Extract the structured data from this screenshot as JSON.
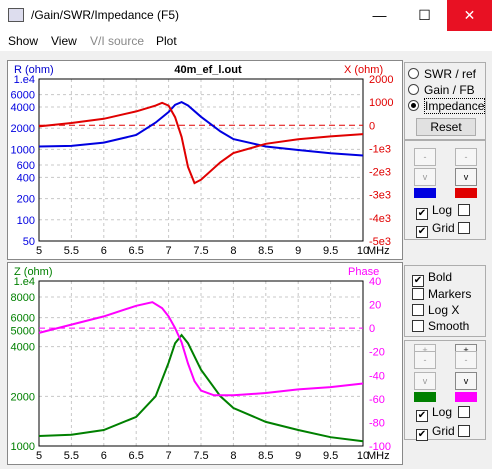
{
  "window": {
    "title": "/Gain/SWR/Impedance (F5)",
    "minimize": "—",
    "maximize": "☐",
    "close": "✕"
  },
  "menu": {
    "show": "Show",
    "view": "View",
    "vi_source": "V/I source",
    "plot": "Plot"
  },
  "top_chart": {
    "title": "40m_ef_l.out",
    "left_label": "R (ohm)",
    "right_label": "X (ohm)",
    "left_ticks": [
      "1.e4",
      "6000",
      "4000",
      "2000",
      "1000",
      "600",
      "400",
      "200",
      "100",
      "50"
    ],
    "right_ticks": [
      "2000",
      "1000",
      "0",
      "-1e3",
      "-2e3",
      "-3e3",
      "-4e3",
      "-5e3"
    ]
  },
  "bottom_chart": {
    "left_label": "Z (ohm)",
    "right_label": "Phase",
    "left_ticks": [
      "1.e4",
      "8000",
      "6000",
      "5000",
      "4000",
      "2000",
      "1000"
    ],
    "right_ticks": [
      "40",
      "20",
      "0",
      "-20",
      "-40",
      "-60",
      "-80",
      "-100"
    ]
  },
  "x_ticks": [
    "5",
    "5.5",
    "6",
    "6.5",
    "7",
    "7.5",
    "8",
    "8.5",
    "9",
    "9.5",
    "10"
  ],
  "x_unit": "MHz",
  "controls": {
    "swr_ref": "SWR / ref",
    "gain_fb": "Gain / FB",
    "impedance": "Impedance",
    "reset": "Reset",
    "log": "Log",
    "grid": "Grid",
    "bold": "Bold",
    "markers": "Markers",
    "logx": "Log X",
    "smooth": "Smooth",
    "up": "-",
    "down": "v",
    "up2": "+",
    "colors": {
      "r": "#0000e0",
      "x": "#e00000",
      "z": "#008000",
      "phase": "#ff00ff"
    }
  },
  "chart_data": [
    {
      "type": "line",
      "title": "40m_ef_l.out",
      "xlabel": "MHz",
      "ylabel": "R (ohm)",
      "y2label": "X (ohm)",
      "yscale": "log",
      "xlim": [
        5,
        10
      ],
      "ylim": [
        50,
        10000
      ],
      "y2lim": [
        -5000,
        2000
      ],
      "series": [
        {
          "axis": "left",
          "x": [
            5,
            5.5,
            6,
            6.5,
            6.8,
            7,
            7.1,
            7.2,
            7.3,
            7.5,
            7.8,
            8,
            8.5,
            9,
            9.5,
            10
          ],
          "values": [
            1100,
            1120,
            1250,
            1600,
            2400,
            3400,
            4300,
            4700,
            4200,
            2900,
            1800,
            1400,
            1100,
            980,
            880,
            820
          ]
        },
        {
          "axis": "right",
          "x": [
            5,
            5.5,
            6,
            6.5,
            6.8,
            6.9,
            7.0,
            7.1,
            7.2,
            7.3,
            7.4,
            7.5,
            7.8,
            8,
            8.5,
            9,
            9.5,
            10
          ],
          "values": [
            -50,
            100,
            280,
            600,
            850,
            970,
            850,
            350,
            -500,
            -1800,
            -2500,
            -2350,
            -1600,
            -1200,
            -800,
            -600,
            -480,
            -380
          ]
        }
      ]
    },
    {
      "type": "line",
      "xlabel": "MHz",
      "ylabel": "Z (ohm)",
      "y2label": "Phase",
      "yscale": "log",
      "xlim": [
        5,
        10
      ],
      "ylim": [
        1000,
        10000
      ],
      "y2lim": [
        -100,
        40
      ],
      "series": [
        {
          "axis": "left",
          "x": [
            5,
            5.5,
            6,
            6.5,
            6.8,
            7,
            7.1,
            7.2,
            7.3,
            7.5,
            7.8,
            8,
            8.5,
            9,
            9.5,
            10
          ],
          "values": [
            1150,
            1170,
            1250,
            1500,
            2000,
            3200,
            4200,
            4700,
            4200,
            2900,
            2000,
            1700,
            1400,
            1250,
            1130,
            1070
          ]
        },
        {
          "axis": "right",
          "x": [
            5,
            5.5,
            6,
            6.5,
            6.75,
            6.9,
            7.0,
            7.1,
            7.2,
            7.3,
            7.4,
            7.5,
            7.7,
            8,
            8.5,
            9,
            9.5,
            10
          ],
          "values": [
            -4,
            3,
            10,
            19,
            22,
            17,
            10,
            0,
            -12,
            -30,
            -45,
            -53,
            -57,
            -57,
            -55,
            -52,
            -50,
            -47
          ]
        }
      ]
    }
  ]
}
